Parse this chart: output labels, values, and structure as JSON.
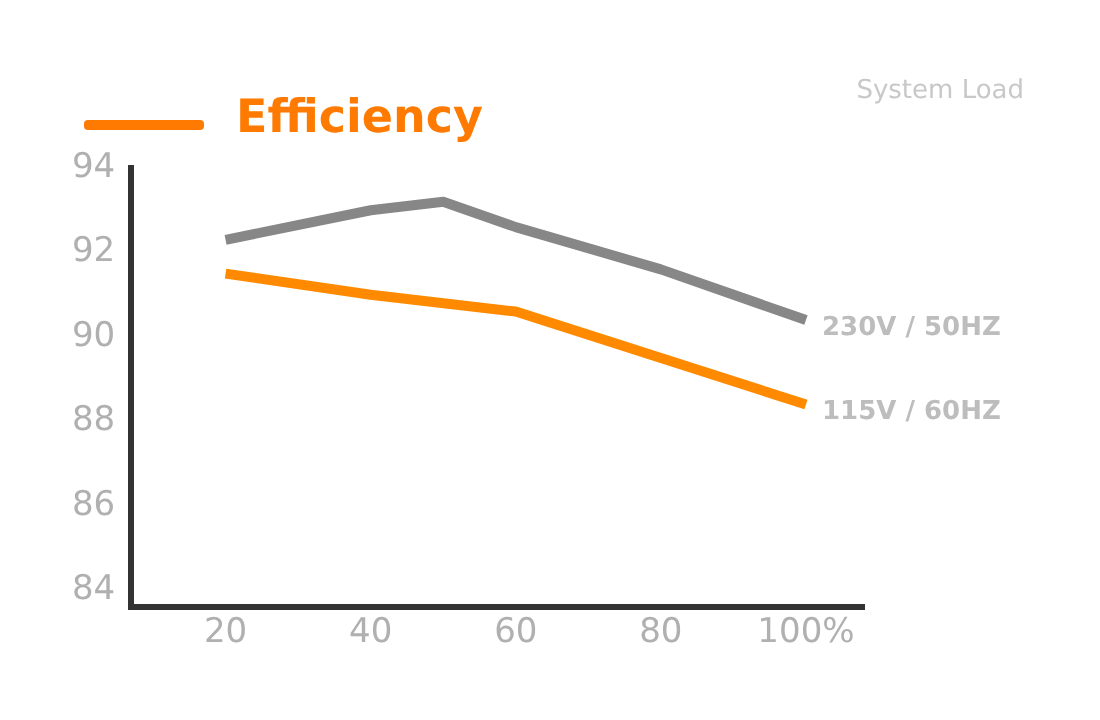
{
  "chart_data": {
    "type": "line",
    "title": "Efficiency",
    "xlabel": "System Load",
    "xlim": [
      7,
      108
    ],
    "xticks": [
      20,
      40,
      60,
      80,
      {
        "value": 100,
        "label": "100%"
      }
    ],
    "ylim": [
      83.6,
      94
    ],
    "yticks": [
      84,
      86,
      88,
      90,
      92,
      94
    ],
    "grid": false,
    "legend": false,
    "marker": "none",
    "line_style": "solid",
    "series": [
      {
        "name": "230V / 50HZ",
        "color": "#878787",
        "x": [
          20,
          40,
          50,
          60,
          80,
          100
        ],
        "values": [
          92.3,
          93.0,
          93.2,
          92.6,
          91.6,
          90.4
        ]
      },
      {
        "name": "115V / 60HZ",
        "color": "#ff8a00",
        "x": [
          20,
          40,
          60,
          100
        ],
        "values": [
          91.5,
          91.0,
          90.6,
          88.4
        ]
      }
    ]
  }
}
